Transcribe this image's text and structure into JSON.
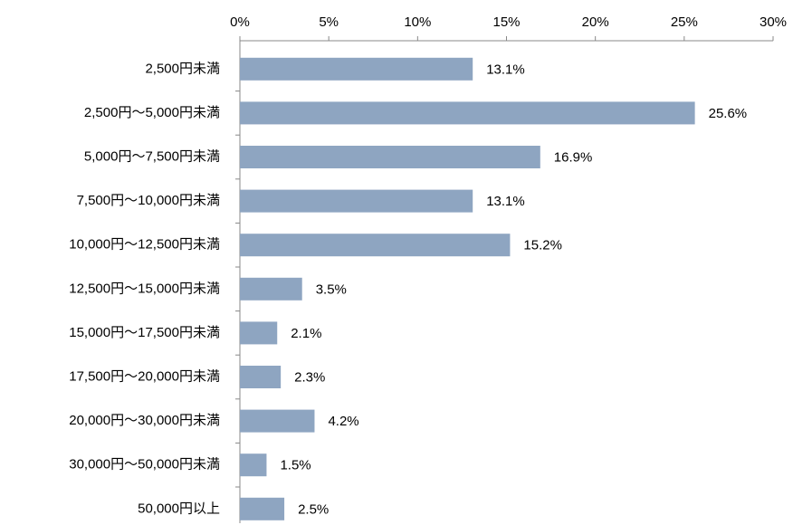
{
  "chart_data": {
    "type": "bar",
    "orientation": "horizontal",
    "categories": [
      "2,500円未満",
      "2,500円〜5,000円未満",
      "5,000円〜7,500円未満",
      "7,500円〜10,000円未満",
      "10,000円〜12,500円未満",
      "12,500円〜15,000円未満",
      "15,000円〜17,500円未満",
      "17,500円〜20,000円未満",
      "20,000円〜30,000円未満",
      "30,000円〜50,000円未満",
      "50,000円以上"
    ],
    "values": [
      13.1,
      25.6,
      16.9,
      13.1,
      15.2,
      3.5,
      2.1,
      2.3,
      4.2,
      1.5,
      2.5
    ],
    "value_labels": [
      "13.1%",
      "25.6%",
      "16.9%",
      "13.1%",
      "15.2%",
      "3.5%",
      "2.1%",
      "2.3%",
      "4.2%",
      "1.5%",
      "2.5%"
    ],
    "color": "#8ea5c1",
    "xlim": [
      0,
      30
    ],
    "xticks": [
      {
        "value": 0,
        "label": "0%"
      },
      {
        "value": 5,
        "label": "5%"
      },
      {
        "value": 10,
        "label": "10%"
      },
      {
        "value": 15,
        "label": "15%"
      },
      {
        "value": 20,
        "label": "20%"
      },
      {
        "value": 25,
        "label": "25%"
      },
      {
        "value": 30,
        "label": "30%"
      }
    ],
    "grid": false
  }
}
